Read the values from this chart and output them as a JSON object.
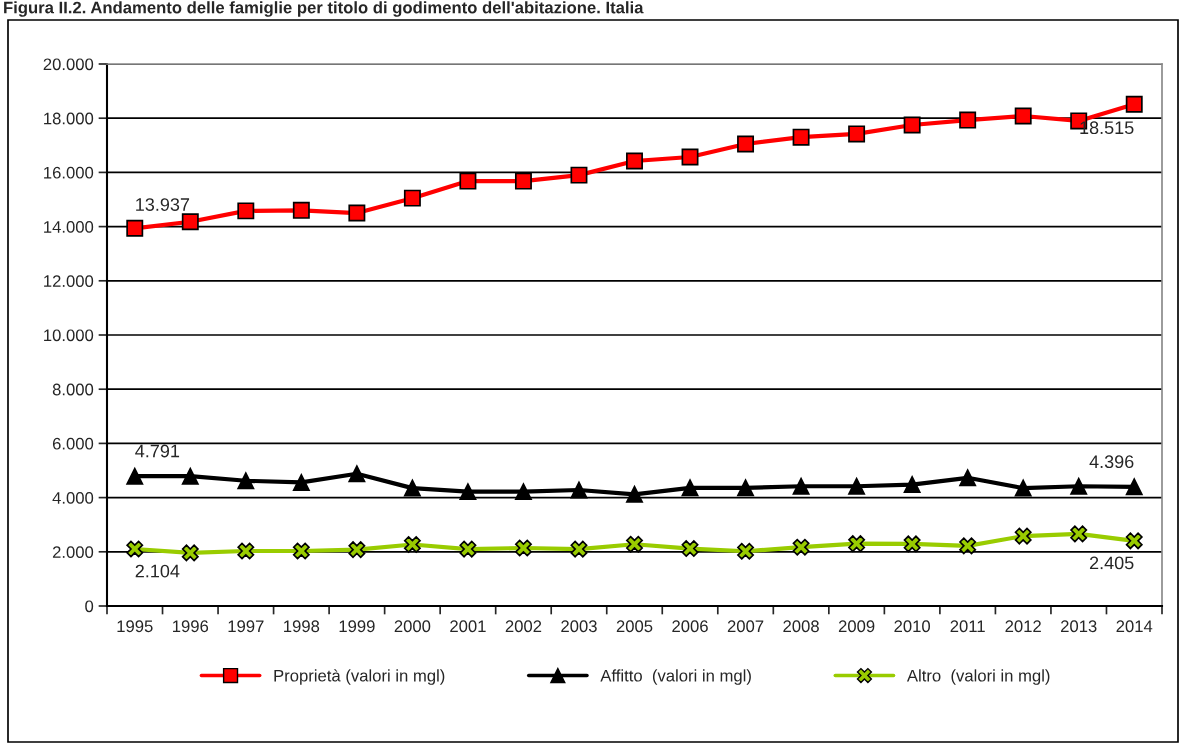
{
  "chart_data": {
    "type": "line",
    "title": "Figura II.2. Andamento delle famiglie per titolo di godimento dell'abitazione. Italia",
    "categories": [
      "1995",
      "1996",
      "1997",
      "1998",
      "1999",
      "2000",
      "2001",
      "2002",
      "2003",
      "2005",
      "2006",
      "2007",
      "2008",
      "2009",
      "2010",
      "2011",
      "2012",
      "2013",
      "2014"
    ],
    "series": [
      {
        "name": "Proprietà (valori in mgl)",
        "color": "#ff0000",
        "marker": "square",
        "values": [
          13937,
          14180,
          14580,
          14600,
          14500,
          15050,
          15680,
          15680,
          15900,
          16420,
          16570,
          17050,
          17300,
          17420,
          17750,
          17930,
          18080,
          17900,
          18515
        ],
        "value_labels": [
          "13.937",
          null,
          null,
          null,
          null,
          null,
          null,
          null,
          null,
          null,
          null,
          null,
          null,
          null,
          null,
          null,
          null,
          null,
          "18.515"
        ]
      },
      {
        "name": "Affitto  (valori in mgl)",
        "color": "#000000",
        "marker": "triangle",
        "values": [
          4791,
          4791,
          4620,
          4560,
          4880,
          4350,
          4220,
          4220,
          4280,
          4120,
          4360,
          4360,
          4420,
          4420,
          4480,
          4730,
          4350,
          4420,
          4396
        ],
        "value_labels": [
          "4.791",
          null,
          null,
          null,
          null,
          null,
          null,
          null,
          null,
          null,
          null,
          null,
          null,
          null,
          null,
          null,
          null,
          null,
          "4.396"
        ]
      },
      {
        "name": "Altro  (valori in mgl)",
        "color": "#99cc00",
        "marker": "cross",
        "values": [
          2104,
          1960,
          2030,
          2030,
          2080,
          2270,
          2100,
          2140,
          2100,
          2280,
          2120,
          2020,
          2170,
          2300,
          2290,
          2220,
          2580,
          2660,
          2405
        ],
        "value_labels": [
          "2.104",
          null,
          null,
          null,
          null,
          null,
          null,
          null,
          null,
          null,
          null,
          null,
          null,
          null,
          null,
          null,
          null,
          null,
          "2.405"
        ]
      }
    ],
    "ylim": [
      0,
      20000
    ],
    "yticks": [
      {
        "value": 0,
        "label": "0"
      },
      {
        "value": 2000,
        "label": "2.000"
      },
      {
        "value": 4000,
        "label": "4.000"
      },
      {
        "value": 6000,
        "label": "6.000"
      },
      {
        "value": 8000,
        "label": "8.000"
      },
      {
        "value": 10000,
        "label": "10.000"
      },
      {
        "value": 12000,
        "label": "12.000"
      },
      {
        "value": 14000,
        "label": "14.000"
      },
      {
        "value": 16000,
        "label": "16.000"
      },
      {
        "value": 18000,
        "label": "18.000"
      },
      {
        "value": 20000,
        "label": "20.000"
      }
    ],
    "grid": "y",
    "legend": "bottom",
    "line_style": "solid"
  }
}
